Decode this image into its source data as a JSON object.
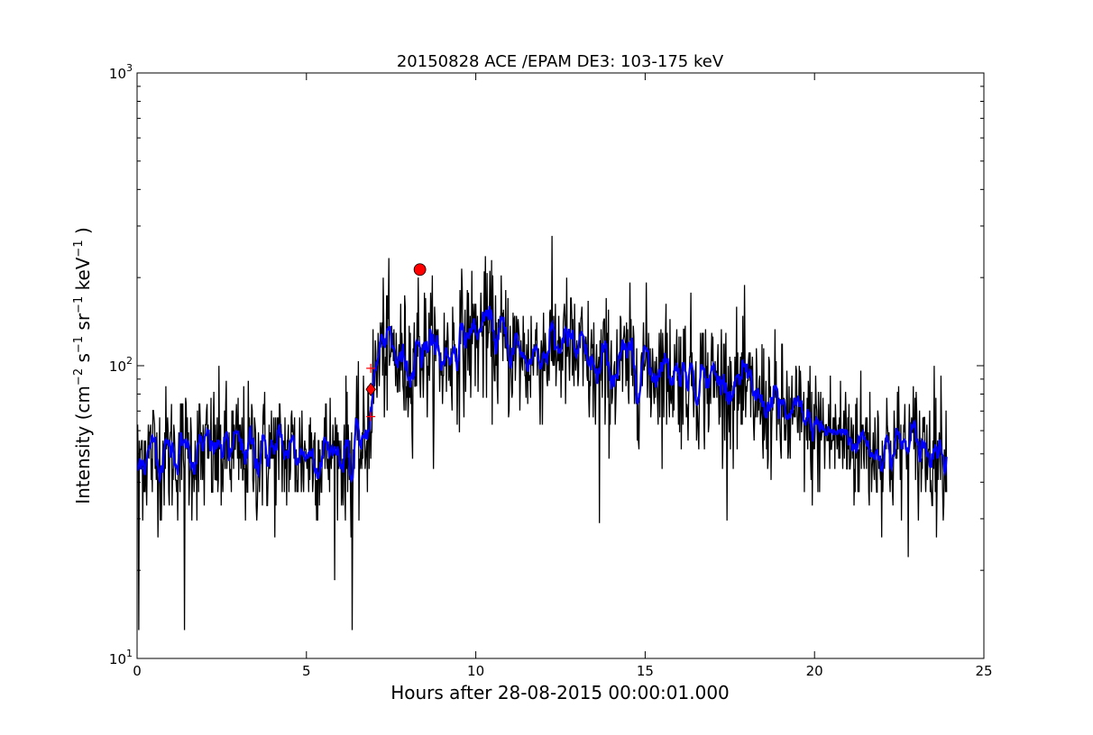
{
  "chart_data": {
    "type": "line",
    "title": "20150828 ACE /EPAM DE3: 103-175 keV",
    "xlabel": "Hours after 28-08-2015 00:00:01.000",
    "ylabel": {
      "base": "Intensity (cm",
      "parts": [
        {
          "t": "−2",
          "sup": true
        },
        {
          "t": " s",
          "sup": false
        },
        {
          "t": "−1",
          "sup": true
        },
        {
          "t": " sr",
          "sup": false
        },
        {
          "t": "−1",
          "sup": true
        },
        {
          "t": " keV",
          "sup": false
        },
        {
          "t": "−1",
          "sup": true
        },
        {
          "t": " )",
          "sup": false
        }
      ]
    },
    "xlim": [
      0,
      25
    ],
    "ylim": [
      10,
      1000
    ],
    "yscale": "log",
    "grid": false,
    "x_ticks": [
      {
        "value": 0,
        "label": "0"
      },
      {
        "value": 5,
        "label": "5"
      },
      {
        "value": 10,
        "label": "10"
      },
      {
        "value": 15,
        "label": "15"
      },
      {
        "value": 20,
        "label": "20"
      },
      {
        "value": 25,
        "label": "25"
      }
    ],
    "y_major_ticks": [
      {
        "value": 10,
        "base": "10",
        "exp": "1"
      },
      {
        "value": 100,
        "base": "10",
        "exp": "2"
      },
      {
        "value": 1000,
        "base": "10",
        "exp": "3"
      }
    ],
    "series": [
      {
        "role": "raw",
        "color": "#000000",
        "samples_per_hour": 60,
        "x_end": 23.9,
        "envelope": {
          "x": [
            0.0,
            6.7,
            6.9,
            7.2,
            7.5,
            8.0,
            8.3,
            9.0,
            10.0,
            10.5,
            11.5,
            12.5,
            13.5,
            15.0,
            16.0,
            17.5,
            19.0,
            20.0,
            22.0,
            23.9
          ],
          "mean": [
            50,
            50,
            72,
            115,
            108,
            98,
            115,
            105,
            128,
            125,
            105,
            118,
            95,
            100,
            95,
            85,
            68,
            60,
            52,
            52
          ]
        },
        "spikes": [
          {
            "x": 0.05,
            "y": 12.5
          },
          {
            "x": 1.4,
            "y": 12.5
          },
          {
            "x": 6.35,
            "y": 12.5
          },
          {
            "x": 8.3,
            "y": 200
          },
          {
            "x": 10.25,
            "y": 210
          },
          {
            "x": 13.65,
            "y": 29
          }
        ]
      },
      {
        "role": "smoothed",
        "color": "#0000ff"
      }
    ],
    "markers": [
      {
        "shape": "diamond",
        "x": 6.9,
        "y": 83,
        "color": "#ff0000"
      },
      {
        "shape": "circle",
        "x": 8.35,
        "y": 213,
        "color": "#ff0000"
      },
      {
        "shape": "plus",
        "x": 6.9,
        "y": 98,
        "color": "#ff0000"
      },
      {
        "shape": "plus",
        "x": 6.9,
        "y": 67,
        "color": "#ff0000"
      }
    ]
  }
}
